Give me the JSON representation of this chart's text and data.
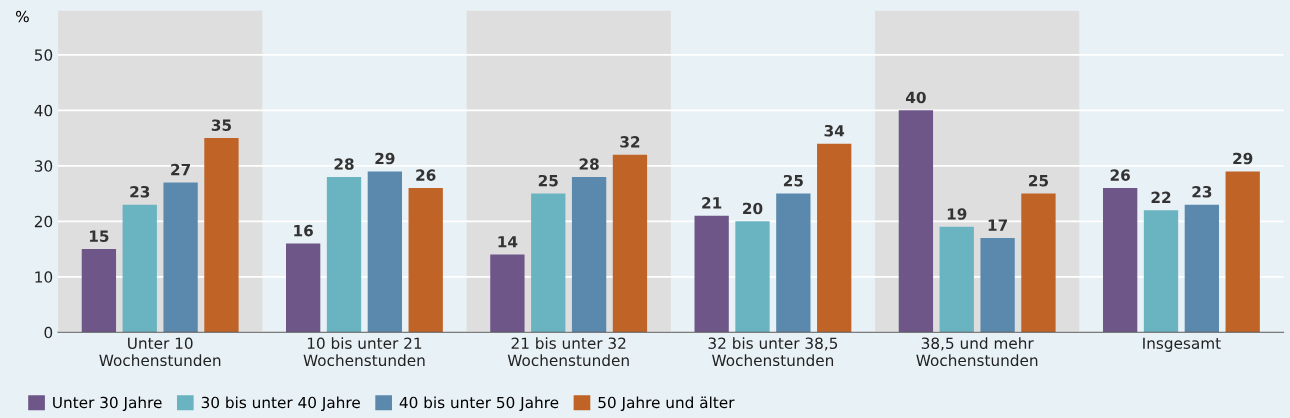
{
  "chart_data": {
    "type": "bar",
    "ylabel": "%",
    "categories": [
      "Unter 10\nWochenstunden",
      "10 bis unter 21\nWochenstunden",
      "21 bis unter 32\nWochenstunden",
      "32 bis unter 38,5\nWochenstunden",
      "38,5 und mehr\nWochenstunden",
      "Insgesamt"
    ],
    "series": [
      {
        "name": "Unter 30 Jahre",
        "color": "#6e5788",
        "values": [
          15,
          16,
          14,
          21,
          40,
          26
        ]
      },
      {
        "name": "30 bis unter 40 Jahre",
        "color": "#6ab3c0",
        "values": [
          23,
          28,
          25,
          20,
          19,
          22
        ]
      },
      {
        "name": "40 bis unter 50 Jahre",
        "color": "#5b89ad",
        "values": [
          27,
          29,
          28,
          25,
          17,
          23
        ]
      },
      {
        "name": "50 Jahre und älter",
        "color": "#c06327",
        "values": [
          35,
          26,
          32,
          34,
          25,
          29
        ]
      }
    ],
    "bands": [
      {
        "axis": "x",
        "from": "Unter 10\nWochenstunden",
        "to": "Unter 10\nWochenstunden",
        "color": "#dedede"
      },
      {
        "axis": "x",
        "from": "21 bis unter 32\nWochenstunden",
        "to": "21 bis unter 32\nWochenstunden",
        "color": "#dedede"
      },
      {
        "axis": "x",
        "from": "38,5 und mehr\nWochenstunden",
        "to": "38,5 und mehr\nWochenstunden",
        "color": "#dedede"
      }
    ],
    "ylim": [
      0,
      58
    ],
    "yticks": [
      0,
      10,
      20,
      30,
      40,
      50
    ],
    "grid": "y",
    "legend": "bottom left",
    "data_labels": true
  }
}
